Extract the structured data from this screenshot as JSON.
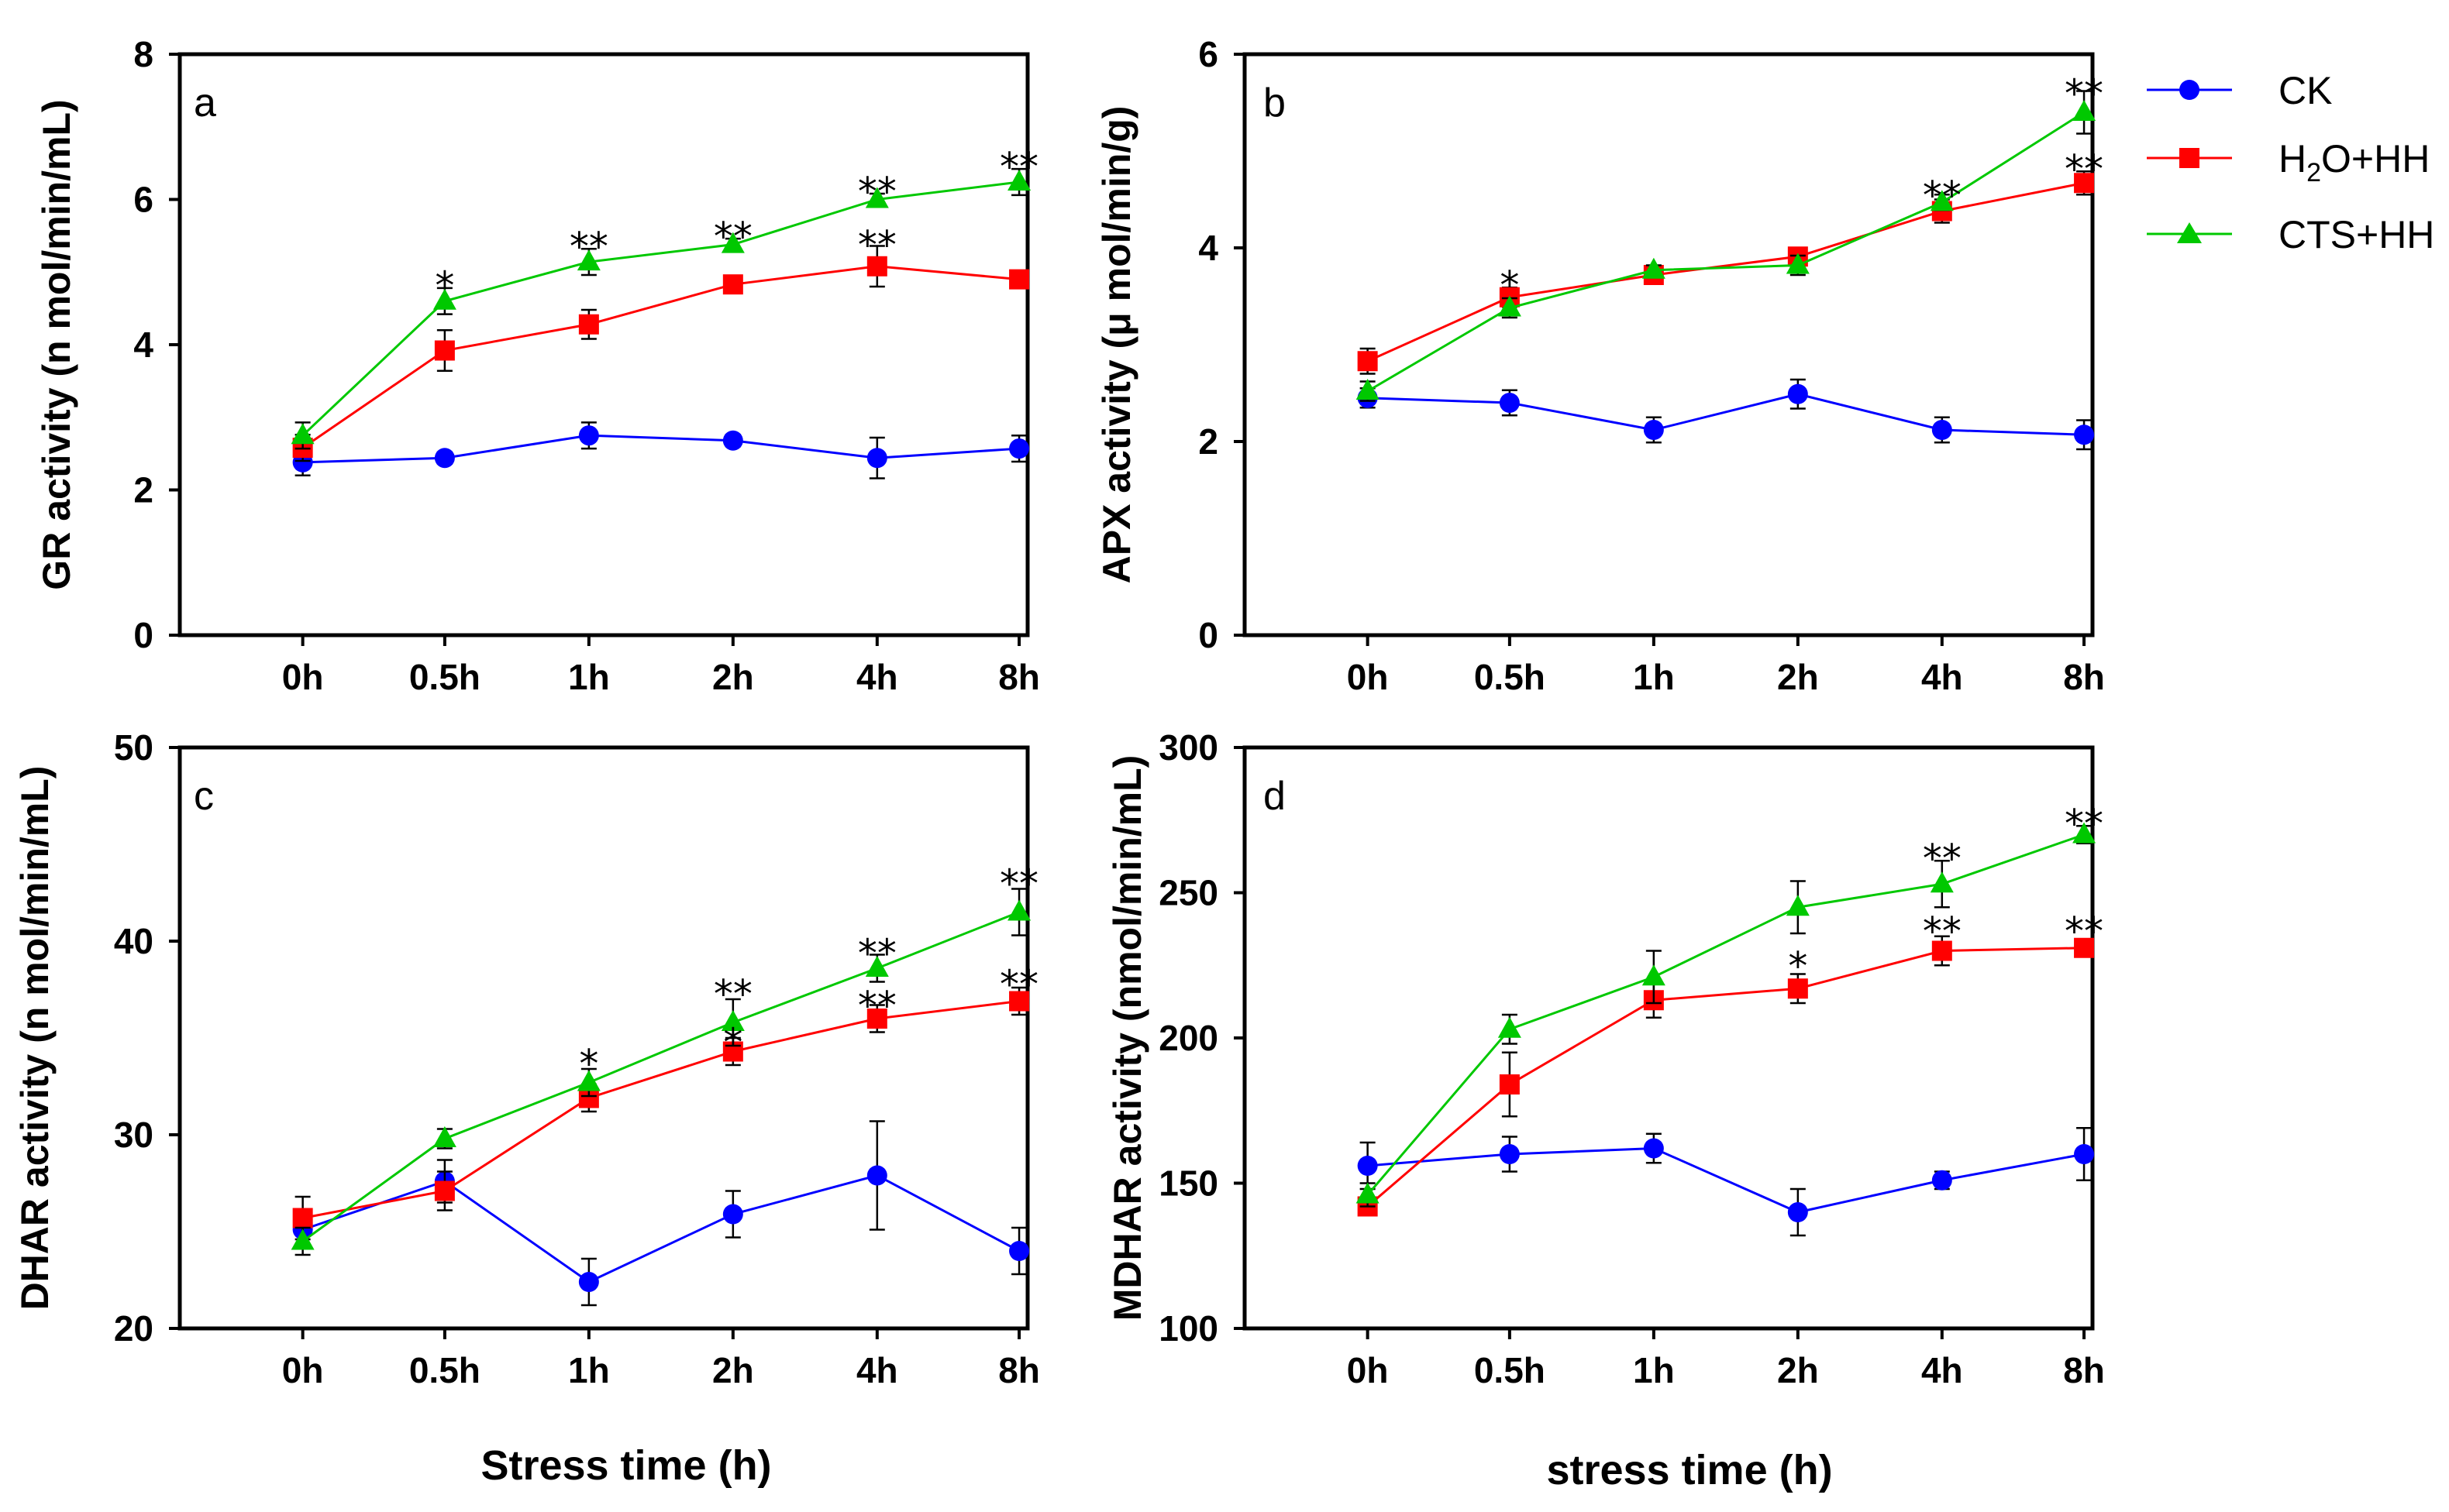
{
  "chart_data": [
    {
      "panel": "a",
      "type": "line",
      "ylabel": "GR activity (n mol/min/mL)",
      "ylim": [
        0,
        8
      ],
      "yticks": [
        0,
        2,
        4,
        6,
        8
      ],
      "categories": [
        "0h",
        "0.5h",
        "1h",
        "2h",
        "4h",
        "8h"
      ],
      "series": [
        {
          "name": "CK",
          "values": [
            2.38,
            2.44,
            2.75,
            2.68,
            2.44,
            2.57
          ],
          "errors": [
            0.18,
            0.08,
            0.18,
            0.08,
            0.28,
            0.18
          ]
        },
        {
          "name": "H2O+HH",
          "values": [
            2.58,
            3.92,
            4.28,
            4.83,
            5.08,
            4.9
          ],
          "errors": [
            0.18,
            0.28,
            0.2,
            0.08,
            0.28,
            0.08
          ]
        },
        {
          "name": "CTS+HH",
          "values": [
            2.75,
            4.6,
            5.14,
            5.38,
            6.0,
            6.24
          ],
          "errors": [
            0.18,
            0.18,
            0.18,
            0.08,
            0.08,
            0.18
          ]
        }
      ],
      "annotations": [
        {
          "x": "0.5h",
          "y": 4.82,
          "text": "*"
        },
        {
          "x": "1h",
          "y": 5.36,
          "text": "**"
        },
        {
          "x": "2h",
          "y": 5.5,
          "text": "**"
        },
        {
          "x": "4h",
          "y": 5.38,
          "text": "**"
        },
        {
          "x": "4h",
          "y": 6.12,
          "text": "**"
        },
        {
          "x": "8h",
          "y": 6.46,
          "text": "**"
        }
      ]
    },
    {
      "panel": "b",
      "type": "line",
      "ylabel": "APX activity (μ mol/min/g)",
      "ylim": [
        0,
        6
      ],
      "yticks": [
        0,
        2,
        4,
        6
      ],
      "categories": [
        "0h",
        "0.5h",
        "1h",
        "2h",
        "4h",
        "8h"
      ],
      "series": [
        {
          "name": "CK",
          "values": [
            2.45,
            2.4,
            2.12,
            2.49,
            2.12,
            2.07
          ],
          "errors": [
            0.1,
            0.13,
            0.13,
            0.15,
            0.13,
            0.15
          ]
        },
        {
          "name": "H2O+HH",
          "values": [
            2.83,
            3.49,
            3.72,
            3.91,
            4.38,
            4.67
          ],
          "errors": [
            0.13,
            0.1,
            0.05,
            0.05,
            0.12,
            0.12
          ]
        },
        {
          "name": "CTS+HH",
          "values": [
            2.52,
            3.38,
            3.77,
            3.82,
            4.47,
            5.4
          ],
          "errors": [
            0.1,
            0.1,
            0.05,
            0.1,
            0.08,
            0.22
          ]
        }
      ],
      "annotations": [
        {
          "x": "0.5h",
          "y": 3.62,
          "text": "*"
        },
        {
          "x": "4h",
          "y": 4.55,
          "text": "**"
        },
        {
          "x": "8h",
          "y": 4.82,
          "text": "**"
        },
        {
          "x": "8h",
          "y": 5.6,
          "text": "**"
        }
      ]
    },
    {
      "panel": "c",
      "type": "line",
      "ylabel": "DHAR activity (n mol/min/mL)",
      "ylim": [
        20,
        50
      ],
      "yticks": [
        20,
        30,
        40,
        50
      ],
      "categories": [
        "0h",
        "0.5h",
        "1h",
        "2h",
        "4h",
        "8h"
      ],
      "series": [
        {
          "name": "CK",
          "values": [
            25.1,
            27.6,
            22.4,
            25.9,
            27.9,
            24.0
          ],
          "errors": [
            0.9,
            1.1,
            1.2,
            1.2,
            2.8,
            1.2
          ]
        },
        {
          "name": "H2O+HH",
          "values": [
            25.7,
            27.1,
            31.9,
            34.3,
            36.0,
            36.9
          ],
          "errors": [
            1.1,
            1.0,
            0.7,
            0.7,
            0.7,
            0.7
          ]
        },
        {
          "name": "CTS+HH",
          "values": [
            24.5,
            29.8,
            32.7,
            35.8,
            38.6,
            41.5
          ],
          "errors": [
            0.7,
            0.5,
            0.7,
            1.2,
            0.7,
            1.2
          ]
        }
      ],
      "annotations": [
        {
          "x": "1h",
          "y": 33.7,
          "text": "*"
        },
        {
          "x": "2h",
          "y": 34.8,
          "text": "*"
        },
        {
          "x": "2h",
          "y": 37.3,
          "text": "**"
        },
        {
          "x": "4h",
          "y": 36.7,
          "text": "**"
        },
        {
          "x": "4h",
          "y": 39.4,
          "text": "**"
        },
        {
          "x": "8h",
          "y": 37.8,
          "text": "**"
        },
        {
          "x": "8h",
          "y": 43.0,
          "text": "**"
        }
      ]
    },
    {
      "panel": "d",
      "type": "line",
      "ylabel": "MDHAR activity (nmol/min/mL)",
      "ylim": [
        100,
        300
      ],
      "yticks": [
        100,
        150,
        200,
        250,
        300
      ],
      "categories": [
        "0h",
        "0.5h",
        "1h",
        "2h",
        "4h",
        "8h"
      ],
      "series": [
        {
          "name": "CK",
          "values": [
            156,
            160,
            162,
            140,
            151,
            160
          ],
          "errors": [
            8,
            6,
            5,
            8,
            3,
            9
          ]
        },
        {
          "name": "H2O+HH",
          "values": [
            142,
            184,
            213,
            217,
            230,
            231
          ],
          "errors": [
            3,
            11,
            6,
            5,
            5,
            2
          ]
        },
        {
          "name": "CTS+HH",
          "values": [
            146,
            203,
            221,
            245,
            253,
            270
          ],
          "errors": [
            4,
            5,
            9,
            9,
            8,
            3
          ]
        }
      ],
      "annotations": [
        {
          "x": "2h",
          "y": 225,
          "text": "*"
        },
        {
          "x": "4h",
          "y": 237,
          "text": "**"
        },
        {
          "x": "4h",
          "y": 262,
          "text": "**"
        },
        {
          "x": "8h",
          "y": 237,
          "text": "**"
        },
        {
          "x": "8h",
          "y": 274,
          "text": "**"
        }
      ]
    }
  ],
  "x_titles": {
    "left": "Stress time (h)",
    "right": "stress time (h)"
  },
  "legend": {
    "placement": "top-right",
    "entries": [
      {
        "name": "CK",
        "color": "#0000ff",
        "marker": "circle"
      },
      {
        "name": "H2O+HH",
        "display": {
          "main": "H",
          "sub": "2",
          "tail": "O+HH"
        },
        "color": "#ff0000",
        "marker": "square"
      },
      {
        "name": "CTS+HH",
        "color": "#00c800",
        "marker": "triangle"
      }
    ]
  },
  "series_colors": {
    "CK": "#0000ff",
    "H2O+HH": "#ff0000",
    "CTS+HH": "#00c800"
  },
  "series_markers": {
    "CK": "circle",
    "H2O+HH": "square",
    "CTS+HH": "triangle"
  }
}
